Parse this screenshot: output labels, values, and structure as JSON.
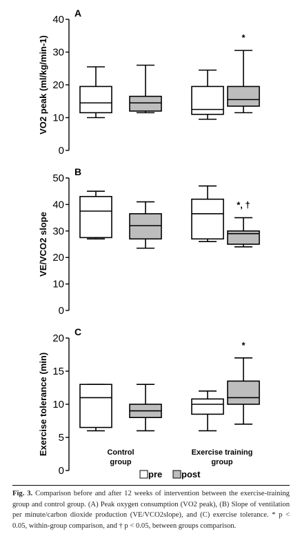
{
  "chart_data": [
    {
      "panel": "A",
      "type": "boxplot",
      "ylabel": "VO2 peak (ml/kg/min-1)",
      "ylim": [
        0,
        40
      ],
      "yticks": [
        0,
        10,
        20,
        30,
        40
      ],
      "boxes": [
        {
          "group": "Control group",
          "time": "pre",
          "min": 10,
          "q1": 11.5,
          "median": 14.5,
          "q3": 19.5,
          "max": 25.5
        },
        {
          "group": "Control group",
          "time": "post",
          "min": 11.5,
          "q1": 12,
          "median": 14.5,
          "q3": 16.5,
          "max": 26
        },
        {
          "group": "Exercise training group",
          "time": "pre",
          "min": 9.5,
          "q1": 11,
          "median": 12.5,
          "q3": 19.5,
          "max": 24.5
        },
        {
          "group": "Exercise training group",
          "time": "post",
          "min": 11.5,
          "q1": 13.5,
          "median": 15.5,
          "q3": 19.5,
          "max": 30.5,
          "annotation": "*"
        }
      ]
    },
    {
      "panel": "B",
      "type": "boxplot",
      "ylabel": "VE/VCO2 slope",
      "ylim": [
        0,
        50
      ],
      "yticks": [
        0,
        10,
        20,
        30,
        40,
        50
      ],
      "boxes": [
        {
          "group": "Control group",
          "time": "pre",
          "min": 27,
          "q1": 27.5,
          "median": 37.5,
          "q3": 43,
          "max": 45
        },
        {
          "group": "Control group",
          "time": "post",
          "min": 23.5,
          "q1": 27,
          "median": 32,
          "q3": 36.5,
          "max": 41
        },
        {
          "group": "Exercise training group",
          "time": "pre",
          "min": 26,
          "q1": 27,
          "median": 36.5,
          "q3": 42,
          "max": 47
        },
        {
          "group": "Exercise training group",
          "time": "post",
          "min": 24,
          "q1": 25,
          "median": 29,
          "q3": 30,
          "max": 35,
          "annotation": "*, †"
        }
      ]
    },
    {
      "panel": "C",
      "type": "boxplot",
      "ylabel": "Exercise tolerance (min)",
      "ylim": [
        0,
        20
      ],
      "yticks": [
        0,
        5,
        10,
        15,
        20
      ],
      "boxes": [
        {
          "group": "Control group",
          "time": "pre",
          "min": 6,
          "q1": 6.5,
          "median": 11,
          "q3": 13,
          "max": 13
        },
        {
          "group": "Control group",
          "time": "post",
          "min": 6,
          "q1": 8,
          "median": 9,
          "q3": 10,
          "max": 13
        },
        {
          "group": "Exercise training group",
          "time": "pre",
          "min": 6,
          "q1": 8.5,
          "median": 10,
          "q3": 10.8,
          "max": 12
        },
        {
          "group": "Exercise training group",
          "time": "post",
          "min": 7,
          "q1": 10,
          "median": 11,
          "q3": 13.5,
          "max": 17,
          "annotation": "*"
        }
      ]
    }
  ],
  "group_labels": {
    "control": [
      "Control",
      "group"
    ],
    "exercise": [
      "Exercise training",
      "group"
    ]
  },
  "legend": {
    "items": [
      {
        "label": "pre",
        "fill": "#ffffff"
      },
      {
        "label": "post",
        "fill": "#bdbdbd"
      }
    ]
  },
  "colors": {
    "pre_fill": "#ffffff",
    "post_fill": "#bdbdbd",
    "stroke": "#000000"
  },
  "caption": {
    "label": "Fig. 3.",
    "text": "Comparison before and after 12 weeks of intervention between the exercise-training group and control group. (A) Peak oxygen consumption (VO2 peak), (B) Slope of ventilation per minute/carbon dioxide production (VE/VCO2slope), and (C) exercise tolerance. * p < 0.05, within-group comparison, and † p < 0.05, between groups comparison."
  }
}
